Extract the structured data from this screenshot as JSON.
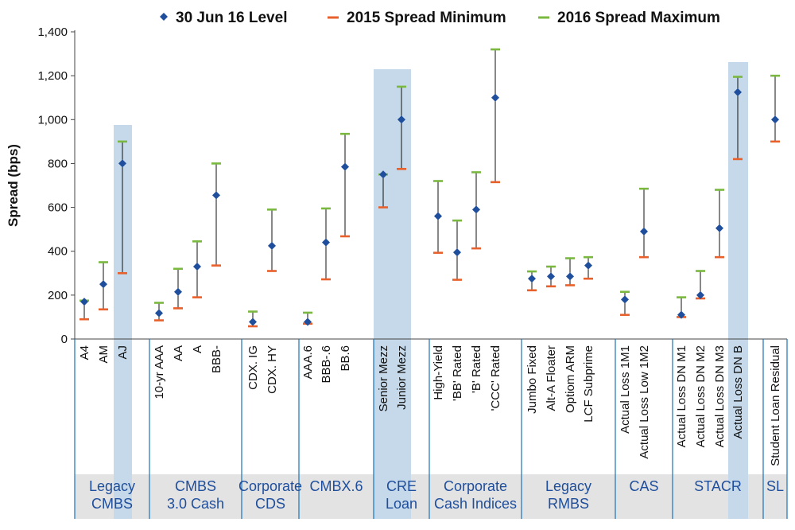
{
  "chart_data": {
    "type": "range",
    "ylabel": "Spread (bps)",
    "ylim": [
      0,
      1400
    ],
    "yticks": [
      "0",
      "200",
      "400",
      "600",
      "800",
      "1,000",
      "1,200",
      "1,400"
    ],
    "legend": {
      "level": "30 Jun 16 Level",
      "min": "2015 Spread Minimum",
      "max": "2016 Spread Maximum"
    },
    "colors": {
      "level": "#1f4e9c",
      "min": "#e8602c",
      "max": "#7ab840",
      "highlight": "#c5d9ea",
      "group_band": "#e3e3e3",
      "divider": "#1a73b8",
      "group_text": "#1f4e9c"
    },
    "groups": [
      {
        "label": [
          "Legacy",
          "CMBS"
        ],
        "items": [
          {
            "name": "A4",
            "level": 170,
            "min": 90,
            "max": 175
          },
          {
            "name": "AM",
            "level": 250,
            "min": 135,
            "max": 350
          },
          {
            "name": "AJ",
            "level": 800,
            "min": 300,
            "max": 900,
            "highlight": true
          }
        ]
      },
      {
        "label": [
          "CMBS",
          "3.0 Cash"
        ],
        "items": [
          {
            "name": "10-yr AAA",
            "level": 118,
            "min": 85,
            "max": 165
          },
          {
            "name": "AA",
            "level": 215,
            "min": 140,
            "max": 320
          },
          {
            "name": "A",
            "level": 330,
            "min": 190,
            "max": 445
          },
          {
            "name": "BBB-",
            "level": 655,
            "min": 335,
            "max": 800
          }
        ]
      },
      {
        "label": [
          "Corporate",
          "CDS"
        ],
        "items": [
          {
            "name": "CDX. IG",
            "level": 78,
            "min": 58,
            "max": 125
          },
          {
            "name": "CDX. HY",
            "level": 425,
            "min": 310,
            "max": 590
          }
        ]
      },
      {
        "label": [
          "CMBX.6"
        ],
        "items": [
          {
            "name": "AAA.6",
            "level": 78,
            "min": 70,
            "max": 120
          },
          {
            "name": "BBB-.6",
            "level": 440,
            "min": 272,
            "max": 595
          },
          {
            "name": "BB.6",
            "level": 785,
            "min": 468,
            "max": 935
          }
        ]
      },
      {
        "label": [
          "CRE",
          "Loan"
        ],
        "items": [
          {
            "name": "Senior Mezz",
            "level": 750,
            "min": 600,
            "max": 750,
            "highlight": true
          },
          {
            "name": "Junior Mezz",
            "level": 1000,
            "min": 775,
            "max": 1150,
            "highlight": true
          }
        ]
      },
      {
        "label": [
          "Corporate",
          "Cash Indices"
        ],
        "items": [
          {
            "name": "High-Yield",
            "level": 560,
            "min": 393,
            "max": 720
          },
          {
            "name": "'BB' Rated",
            "level": 395,
            "min": 270,
            "max": 540
          },
          {
            "name": "'B' Rated",
            "level": 590,
            "min": 413,
            "max": 760
          },
          {
            "name": "'CCC' Rated",
            "level": 1100,
            "min": 715,
            "max": 1320
          }
        ]
      },
      {
        "label": [
          "Legacy",
          "RMBS"
        ],
        "items": [
          {
            "name": "Jumbo Fixed",
            "level": 275,
            "min": 222,
            "max": 308
          },
          {
            "name": "Alt-A Floater",
            "level": 285,
            "min": 240,
            "max": 330
          },
          {
            "name": "Optiom ARM",
            "level": 285,
            "min": 245,
            "max": 368
          },
          {
            "name": "LCF Subprime",
            "level": 335,
            "min": 275,
            "max": 373
          }
        ]
      },
      {
        "label": [
          "CAS"
        ],
        "items": [
          {
            "name": "Actual Loss 1M1",
            "level": 180,
            "min": 110,
            "max": 215
          },
          {
            "name": "Actual Loss Low 1M2",
            "level": 490,
            "min": 373,
            "max": 685
          }
        ]
      },
      {
        "label": [
          "STACR"
        ],
        "items": [
          {
            "name": "Actual Loss DN M1",
            "level": 110,
            "min": 100,
            "max": 190
          },
          {
            "name": "Actual Loss DN M2",
            "level": 200,
            "min": 185,
            "max": 310
          },
          {
            "name": "Actual Loss DN M3",
            "level": 505,
            "min": 373,
            "max": 680
          },
          {
            "name": "Actual Loss DN B",
            "level": 1125,
            "min": 820,
            "max": 1195,
            "highlight": true
          }
        ]
      },
      {
        "label": [
          "SL"
        ],
        "items": [
          {
            "name": "Student Loan Residual",
            "level": 1000,
            "min": 900,
            "max": 1200
          }
        ]
      }
    ]
  }
}
